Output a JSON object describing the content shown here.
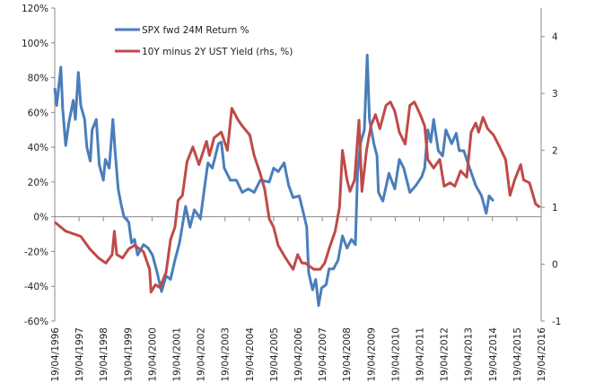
{
  "chart_data": {
    "type": "line",
    "title": "",
    "legend_position": "top-left",
    "left_axis": {
      "ylim": [
        -60,
        120
      ],
      "ticks": [
        -60,
        -40,
        -20,
        0,
        20,
        40,
        60,
        80,
        100,
        120
      ],
      "tick_labels": [
        "-60%",
        "-40%",
        "-20%",
        "0%",
        "20%",
        "40%",
        "60%",
        "80%",
        "100%",
        "120%"
      ]
    },
    "right_axis": {
      "ylim": [
        -1,
        4.5
      ],
      "ticks": [
        -1,
        0,
        1,
        2,
        3,
        4
      ],
      "tick_labels": [
        "-1",
        "0",
        "1",
        "2",
        "3",
        "4"
      ]
    },
    "x_axis": {
      "xlim": [
        1996,
        2016
      ],
      "tick_labels": [
        "19/04/1996",
        "19/04/1997",
        "19/04/1998",
        "19/04/1999",
        "19/04/2000",
        "19/04/2001",
        "19/04/2002",
        "19/04/2003",
        "19/04/2004",
        "19/04/2005",
        "19/04/2006",
        "19/04/2007",
        "19/04/2008",
        "19/04/2009",
        "19/04/2010",
        "19/04/2011",
        "19/04/2012",
        "19/04/2013",
        "19/04/2014",
        "19/04/2015",
        "19/04/2016"
      ]
    },
    "series": [
      {
        "name": "SPX fwd 24M Return %",
        "axis": "left",
        "color": "#4a7ebb",
        "x": [
          1996.0,
          1996.08,
          1996.25,
          1996.33,
          1996.45,
          1996.58,
          1996.76,
          1996.85,
          1996.97,
          1997.07,
          1997.23,
          1997.32,
          1997.46,
          1997.54,
          1997.71,
          1997.83,
          1998.0,
          1998.08,
          1998.24,
          1998.39,
          1998.48,
          1998.61,
          1998.73,
          1998.85,
          1999.04,
          1999.16,
          1999.28,
          1999.41,
          1999.65,
          1999.84,
          2000.02,
          2000.21,
          2000.39,
          2000.58,
          2000.76,
          2000.94,
          2001.13,
          2001.38,
          2001.56,
          2001.74,
          2001.99,
          2002.17,
          2002.3,
          2002.48,
          2002.73,
          2002.85,
          2002.97,
          2003.22,
          2003.47,
          2003.71,
          2003.96,
          2004.2,
          2004.45,
          2004.82,
          2005.0,
          2005.19,
          2005.43,
          2005.62,
          2005.8,
          2006.05,
          2006.23,
          2006.36,
          2006.44,
          2006.6,
          2006.73,
          2006.85,
          2006.97,
          2007.16,
          2007.28,
          2007.46,
          2007.65,
          2007.83,
          2008.02,
          2008.2,
          2008.36,
          2008.45,
          2008.57,
          2008.73,
          2008.85,
          2008.94,
          2009.12,
          2009.25,
          2009.31,
          2009.49,
          2009.74,
          2009.98,
          2010.17,
          2010.35,
          2010.6,
          2010.85,
          2011.09,
          2011.21,
          2011.34,
          2011.46,
          2011.58,
          2011.77,
          2011.95,
          2012.08,
          2012.32,
          2012.51,
          2012.63,
          2012.82,
          2013.06,
          2013.31,
          2013.55,
          2013.74,
          2013.86,
          2014.04
        ],
        "y": [
          74,
          64,
          86,
          62,
          41,
          54,
          67,
          56,
          83,
          64,
          56,
          40,
          32,
          50,
          56,
          30,
          21,
          33,
          28,
          56,
          38,
          16,
          7,
          0,
          -3,
          -15,
          -13,
          -22,
          -16,
          -18,
          -22,
          -32,
          -43,
          -34,
          -36,
          -25,
          -15,
          6,
          -6,
          4,
          -1,
          18,
          31,
          28,
          42,
          43,
          28,
          21,
          21,
          14,
          16,
          14,
          21,
          20,
          28,
          26,
          31,
          18,
          11,
          12,
          2,
          -6,
          -32,
          -42,
          -36,
          -51,
          -41,
          -39,
          -30,
          -30,
          -25,
          -11,
          -18,
          -13,
          -16,
          25,
          42,
          50,
          93,
          56,
          42,
          35,
          14,
          9,
          25,
          16,
          33,
          28,
          14,
          18,
          23,
          28,
          50,
          43,
          56,
          38,
          35,
          50,
          42,
          48,
          38,
          38,
          28,
          18,
          12,
          2,
          12,
          9
        ]
      },
      {
        "name": "10Y minus 2Y UST Yield (rhs, %)",
        "axis": "right",
        "color": "#be4b48",
        "x": [
          1996.0,
          1996.45,
          1997.07,
          1997.44,
          1997.8,
          1998.1,
          1998.36,
          1998.45,
          1998.55,
          1998.79,
          1999.04,
          1999.28,
          1999.65,
          1999.9,
          1999.96,
          2000.14,
          2000.33,
          2000.58,
          2000.76,
          2000.94,
          2001.07,
          2001.25,
          2001.44,
          2001.68,
          2001.93,
          2002.24,
          2002.36,
          2002.55,
          2002.85,
          2003.1,
          2003.28,
          2003.53,
          2003.71,
          2004.02,
          2004.2,
          2004.45,
          2004.63,
          2004.82,
          2005.0,
          2005.19,
          2005.49,
          2005.8,
          2005.99,
          2006.17,
          2006.3,
          2006.66,
          2006.91,
          2007.1,
          2007.28,
          2007.53,
          2007.71,
          2007.83,
          2008.02,
          2008.14,
          2008.33,
          2008.51,
          2008.63,
          2008.82,
          2009.0,
          2009.19,
          2009.37,
          2009.62,
          2009.8,
          2009.98,
          2010.17,
          2010.41,
          2010.6,
          2010.79,
          2011.03,
          2011.21,
          2011.34,
          2011.58,
          2011.83,
          2012.01,
          2012.26,
          2012.45,
          2012.69,
          2012.94,
          2013.12,
          2013.31,
          2013.43,
          2013.61,
          2013.8,
          2014.04,
          2014.29,
          2014.54,
          2014.72,
          2014.91,
          2015.16,
          2015.28,
          2015.52,
          2015.77,
          2015.95
        ],
        "y": [
          0.74,
          0.58,
          0.49,
          0.27,
          0.11,
          0.02,
          0.17,
          0.58,
          0.17,
          0.11,
          0.27,
          0.33,
          0.22,
          -0.09,
          -0.49,
          -0.36,
          -0.41,
          -0.14,
          0.43,
          0.65,
          1.12,
          1.21,
          1.8,
          2.06,
          1.75,
          2.16,
          1.91,
          2.22,
          2.32,
          2.0,
          2.74,
          2.54,
          2.43,
          2.27,
          1.91,
          1.59,
          1.32,
          0.8,
          0.65,
          0.33,
          0.11,
          -0.09,
          0.17,
          0.02,
          0.02,
          -0.09,
          -0.09,
          0.02,
          0.27,
          0.58,
          1.0,
          2.0,
          1.48,
          1.28,
          1.48,
          2.53,
          1.28,
          2.0,
          2.43,
          2.63,
          2.38,
          2.79,
          2.85,
          2.69,
          2.32,
          2.11,
          2.79,
          2.85,
          2.63,
          2.43,
          1.84,
          1.69,
          1.84,
          1.37,
          1.43,
          1.37,
          1.64,
          1.53,
          2.32,
          2.48,
          2.32,
          2.58,
          2.38,
          2.27,
          2.06,
          1.84,
          1.21,
          1.48,
          1.75,
          1.48,
          1.43,
          1.06,
          1.0
        ]
      }
    ]
  }
}
